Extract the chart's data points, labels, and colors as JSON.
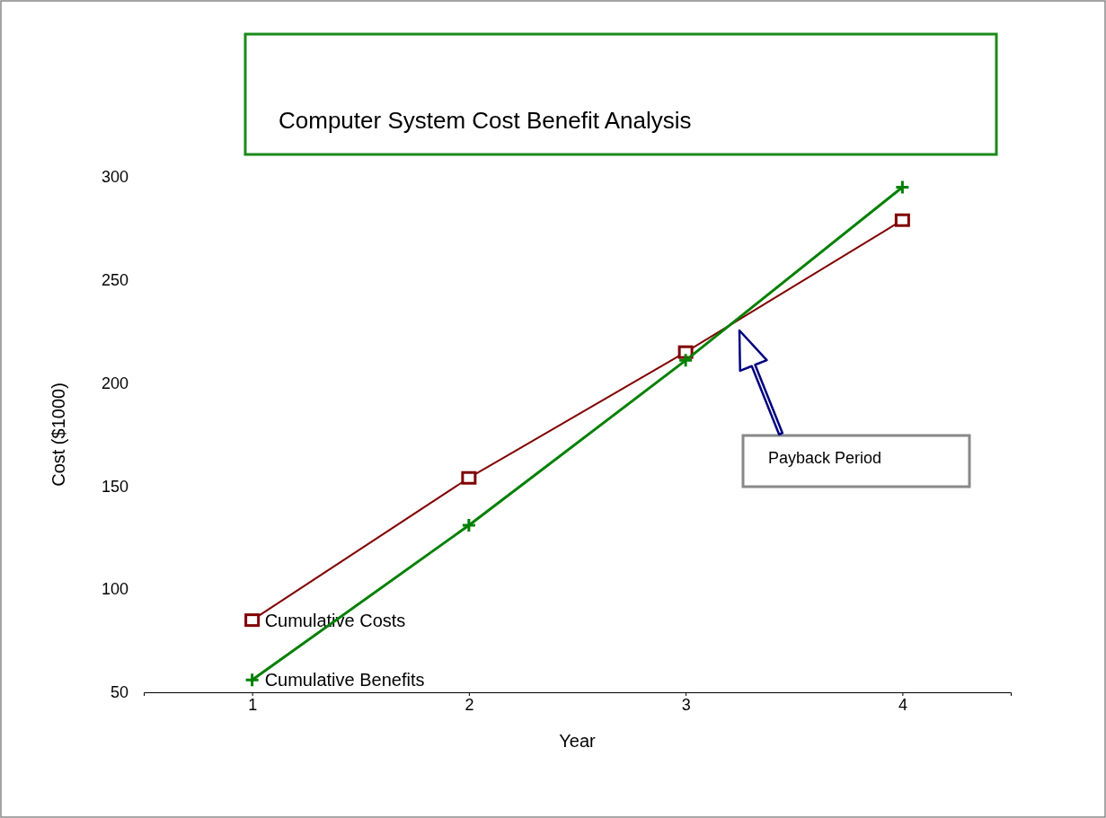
{
  "chart_data": {
    "type": "line",
    "subtitle": "Computer System Cost Benefit Analysis",
    "xlabel": "Year",
    "ylabel": "Cost ($1000)",
    "x": [
      1,
      2,
      3,
      4
    ],
    "xlim": [
      0.5,
      4.5
    ],
    "xticks": [
      1,
      2,
      3,
      4
    ],
    "ylim": [
      50,
      300
    ],
    "yticks": [
      50,
      100,
      150,
      200,
      250,
      300
    ],
    "grid": false,
    "series": [
      {
        "name": "Cumulative Costs",
        "color": "#800000",
        "marker": "square",
        "values": [
          85,
          154,
          215,
          279
        ]
      },
      {
        "name": "Cumulative Benefits",
        "color": "#008000",
        "marker": "cross",
        "values": [
          56,
          131,
          211,
          295
        ]
      }
    ],
    "annotations": [
      "Payback Period"
    ]
  }
}
